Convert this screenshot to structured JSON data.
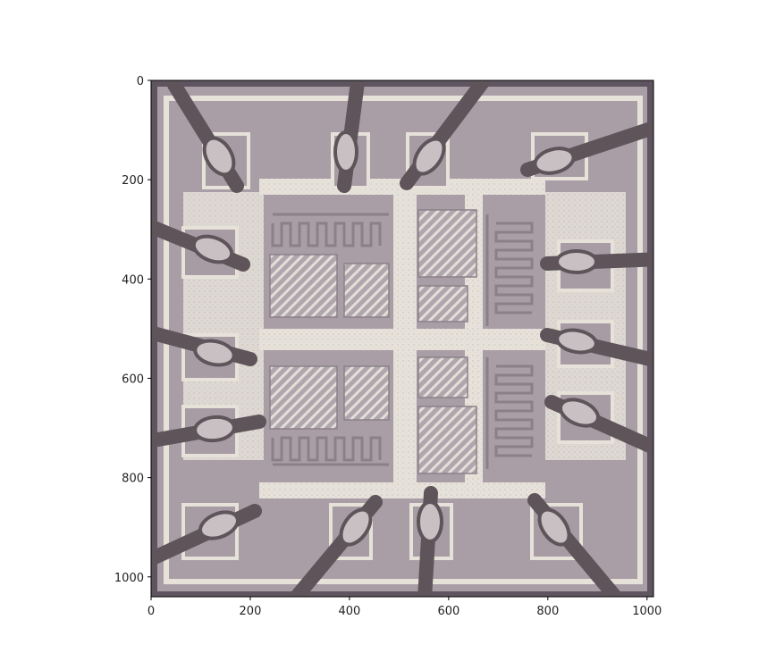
{
  "figure": {
    "image_description_hidden": false,
    "x_ticks": [
      "0",
      "200",
      "400",
      "600",
      "800",
      "1000"
    ],
    "y_ticks": [
      "0",
      "200",
      "400",
      "600",
      "800",
      "1000"
    ],
    "x_tick_values": [
      0,
      200,
      400,
      600,
      800,
      1000
    ],
    "y_tick_values": [
      0,
      200,
      400,
      600,
      800,
      1000
    ],
    "x_range": [
      0,
      1013
    ],
    "y_range": [
      1040,
      0
    ]
  },
  "colors": {
    "die_bg": "#a99ea6",
    "die_frame": "#6b6068",
    "metal_light": "#e6e2da",
    "bond_wire": "#5e5459",
    "bond_pad_glint": "#c9c0c4",
    "axis": "#000000"
  }
}
